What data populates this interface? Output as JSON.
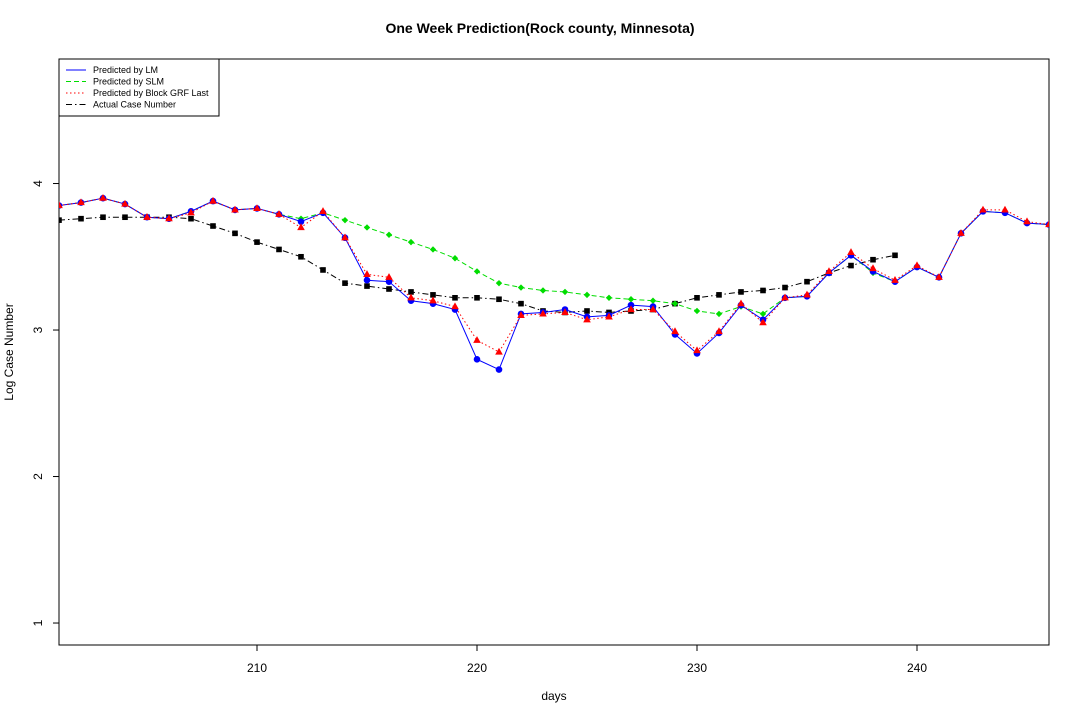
{
  "chart_data": {
    "type": "line",
    "title": "One Week Prediction(Rock county, Minnesota)",
    "xlabel": "days",
    "ylabel": "Log Case Number",
    "xlim": [
      201,
      246
    ],
    "ylim": [
      0.85,
      4.85
    ],
    "x_ticks": [
      "210",
      "220",
      "230",
      "240"
    ],
    "x_tick_values": [
      210,
      220,
      230,
      240
    ],
    "y_ticks": [
      "1",
      "2",
      "3",
      "4"
    ],
    "y_tick_values": [
      1,
      2,
      3,
      4
    ],
    "grid": false,
    "legend_position": "top-left",
    "x": [
      201,
      202,
      203,
      204,
      205,
      206,
      207,
      208,
      209,
      210,
      211,
      212,
      213,
      214,
      215,
      216,
      217,
      218,
      219,
      220,
      221,
      222,
      223,
      224,
      225,
      226,
      227,
      228,
      229,
      230,
      231,
      232,
      233,
      234,
      235,
      236,
      237,
      238,
      239,
      240,
      241,
      242,
      243,
      244,
      245,
      246
    ],
    "series": [
      {
        "name": "Predicted by LM",
        "color": "#0000ff",
        "line_style": "solid",
        "marker": "circle",
        "values": [
          3.85,
          3.87,
          3.9,
          3.86,
          3.77,
          3.76,
          3.81,
          3.88,
          3.82,
          3.83,
          3.79,
          3.74,
          3.8,
          3.63,
          3.34,
          3.33,
          3.2,
          3.18,
          3.14,
          2.8,
          2.73,
          3.11,
          3.12,
          3.14,
          3.09,
          3.1,
          3.17,
          3.16,
          2.97,
          2.84,
          2.98,
          3.17,
          3.07,
          3.22,
          3.23,
          3.39,
          3.51,
          3.4,
          3.33,
          3.43,
          3.36,
          3.66,
          3.81,
          3.8,
          3.73,
          3.72
        ]
      },
      {
        "name": "Predicted by SLM",
        "color": "#00dd00",
        "line_style": "dashed",
        "marker": "diamond",
        "values": [
          3.85,
          3.87,
          3.9,
          3.86,
          3.77,
          3.76,
          3.81,
          3.88,
          3.82,
          3.83,
          3.79,
          3.76,
          3.8,
          3.75,
          3.7,
          3.65,
          3.6,
          3.55,
          3.49,
          3.4,
          3.32,
          3.29,
          3.27,
          3.26,
          3.24,
          3.22,
          3.21,
          3.2,
          3.18,
          3.13,
          3.11,
          3.16,
          3.11,
          3.22,
          3.23,
          3.39,
          3.51,
          3.39,
          3.33,
          3.43,
          3.36,
          3.66,
          3.81,
          3.8,
          3.73,
          3.72
        ]
      },
      {
        "name": "Predicted by Block GRF Last",
        "color": "#ff0000",
        "line_style": "dotted",
        "marker": "triangle",
        "values": [
          3.85,
          3.87,
          3.9,
          3.86,
          3.77,
          3.76,
          3.8,
          3.88,
          3.82,
          3.83,
          3.79,
          3.7,
          3.81,
          3.63,
          3.38,
          3.36,
          3.22,
          3.2,
          3.16,
          2.93,
          2.85,
          3.1,
          3.11,
          3.12,
          3.07,
          3.09,
          3.14,
          3.14,
          2.99,
          2.86,
          2.99,
          3.18,
          3.05,
          3.22,
          3.24,
          3.4,
          3.53,
          3.42,
          3.34,
          3.44,
          3.36,
          3.66,
          3.82,
          3.82,
          3.74,
          3.72
        ]
      },
      {
        "name": "Actual Case Number",
        "color": "#000000",
        "line_style": "dashdot",
        "marker": "square",
        "values": [
          3.75,
          3.76,
          3.77,
          3.77,
          3.77,
          3.77,
          3.76,
          3.71,
          3.66,
          3.6,
          3.55,
          3.5,
          3.41,
          3.32,
          3.3,
          3.28,
          3.26,
          3.24,
          3.22,
          3.22,
          3.21,
          3.18,
          3.13,
          3.12,
          3.13,
          3.12,
          3.13,
          3.14,
          3.18,
          3.22,
          3.24,
          3.26,
          3.27,
          3.29,
          3.33,
          3.39,
          3.44,
          3.48,
          3.51,
          null,
          null,
          null,
          null,
          null,
          null,
          null
        ]
      }
    ]
  }
}
